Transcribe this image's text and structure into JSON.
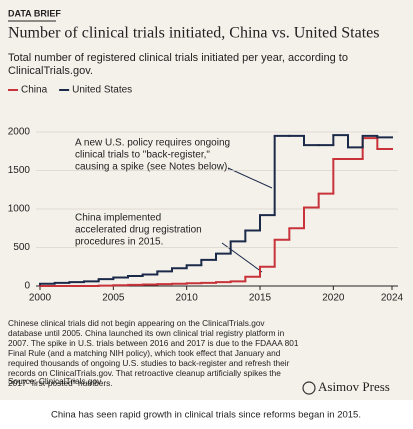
{
  "header": {
    "kicker": "DATA BRIEF",
    "brand": "Asimov Press",
    "caption": "China has seen rapid growth in clinical trials since reforms began in 2015."
  },
  "chart_data": {
    "type": "step",
    "title": "Number of clinical trials initiated, China vs. United States",
    "subtitle": [
      "Total number of registered clinical trials initiated per year, according to",
      "ClinicalTrials.gov."
    ],
    "x": [
      2000,
      2001,
      2002,
      2003,
      2004,
      2005,
      2006,
      2007,
      2008,
      2009,
      2010,
      2011,
      2012,
      2013,
      2014,
      2015,
      2016,
      2017,
      2018,
      2019,
      2020,
      2021,
      2022,
      2023,
      2024
    ],
    "series": [
      {
        "name": "China",
        "color": "#c8333a",
        "values": [
          0,
          0,
          0,
          0,
          0,
          5,
          10,
          15,
          20,
          25,
          30,
          35,
          40,
          50,
          60,
          120,
          250,
          600,
          750,
          1020,
          1200,
          1650,
          1650,
          1920,
          1780
        ]
      },
      {
        "name": "United States",
        "color": "#1c2a4a",
        "values": [
          20,
          30,
          40,
          50,
          60,
          90,
          110,
          130,
          150,
          190,
          230,
          270,
          340,
          420,
          580,
          720,
          920,
          1950,
          1950,
          1830,
          1830,
          1960,
          1800,
          1950,
          1930
        ]
      }
    ],
    "xlim": [
      2000,
      2024
    ],
    "xticks": [
      2000,
      2005,
      2010,
      2015,
      2020,
      2024
    ],
    "ylim": [
      0,
      2000
    ],
    "yticks": [
      0,
      500,
      1000,
      1500,
      2000
    ],
    "grid": true,
    "annotations": [
      [
        "A new U.S. policy requires ongoing",
        "clinical trials to \"back-register,\"",
        "causing a spike (see Notes below)."
      ],
      [
        "China implemented",
        "accelerated drug registration",
        "procedures in 2015."
      ]
    ],
    "notes": [
      "Chinese clinical trials did not begin appearing on the ClinicalTrials.gov",
      "database until 2005. China launched its own clinical trial registry platform in",
      "2007. The spike in U.S. trials between 2016 and 2017 is due to the FDAAA 801",
      "Final Rule (and a matching NIH policy), which took effect that January and",
      "required thousands of ongoing U.S. studies to back-register and refresh their",
      "records on ClinicalTrials.gov. That retroactive cleanup artificially spikes the",
      "2017 \"first-posted\" numbers."
    ],
    "source": "Source: ClinicalTrials.gov"
  }
}
